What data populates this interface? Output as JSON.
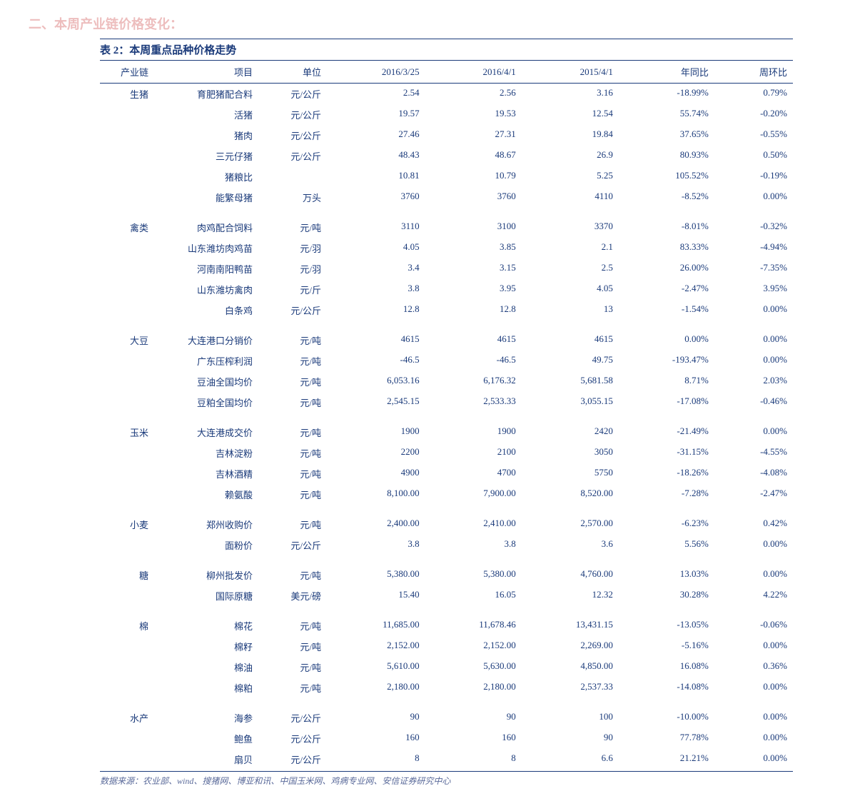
{
  "page_header": "二、本周产业链价格变化：",
  "table_title": "表 2：本周重点品种价格走势",
  "columns": [
    "产业链",
    "项目",
    "单位",
    "2016/3/25",
    "2016/4/1",
    "2015/4/1",
    "年同比",
    "周环比"
  ],
  "groups": [
    {
      "chain": "生猪",
      "rows": [
        {
          "item": "育肥猪配合料",
          "unit": "元/公斤",
          "c1": "2.54",
          "c2": "2.56",
          "c3": "3.16",
          "yoy": "-18.99%",
          "wow": "0.79%"
        },
        {
          "item": "活猪",
          "unit": "元/公斤",
          "c1": "19.57",
          "c2": "19.53",
          "c3": "12.54",
          "yoy": "55.74%",
          "wow": "-0.20%"
        },
        {
          "item": "猪肉",
          "unit": "元/公斤",
          "c1": "27.46",
          "c2": "27.31",
          "c3": "19.84",
          "yoy": "37.65%",
          "wow": "-0.55%"
        },
        {
          "item": "三元仔猪",
          "unit": "元/公斤",
          "c1": "48.43",
          "c2": "48.67",
          "c3": "26.9",
          "yoy": "80.93%",
          "wow": "0.50%"
        },
        {
          "item": "猪粮比",
          "unit": "",
          "c1": "10.81",
          "c2": "10.79",
          "c3": "5.25",
          "yoy": "105.52%",
          "wow": "-0.19%"
        },
        {
          "item": "能繁母猪",
          "unit": "万头",
          "c1": "3760",
          "c2": "3760",
          "c3": "4110",
          "yoy": "-8.52%",
          "wow": "0.00%"
        }
      ]
    },
    {
      "chain": "禽类",
      "rows": [
        {
          "item": "肉鸡配合饲料",
          "unit": "元/吨",
          "c1": "3110",
          "c2": "3100",
          "c3": "3370",
          "yoy": "-8.01%",
          "wow": "-0.32%"
        },
        {
          "item": "山东潍坊肉鸡苗",
          "unit": "元/羽",
          "c1": "4.05",
          "c2": "3.85",
          "c3": "2.1",
          "yoy": "83.33%",
          "wow": "-4.94%"
        },
        {
          "item": "河南南阳鸭苗",
          "unit": "元/羽",
          "c1": "3.4",
          "c2": "3.15",
          "c3": "2.5",
          "yoy": "26.00%",
          "wow": "-7.35%"
        },
        {
          "item": "山东潍坊禽肉",
          "unit": "元/斤",
          "c1": "3.8",
          "c2": "3.95",
          "c3": "4.05",
          "yoy": "-2.47%",
          "wow": "3.95%"
        },
        {
          "item": "白条鸡",
          "unit": "元/公斤",
          "c1": "12.8",
          "c2": "12.8",
          "c3": "13",
          "yoy": "-1.54%",
          "wow": "0.00%"
        }
      ]
    },
    {
      "chain": "大豆",
      "rows": [
        {
          "item": "大连港口分销价",
          "unit": "元/吨",
          "c1": "4615",
          "c2": "4615",
          "c3": "4615",
          "yoy": "0.00%",
          "wow": "0.00%"
        },
        {
          "item": "广东压榨利润",
          "unit": "元/吨",
          "c1": "-46.5",
          "c2": "-46.5",
          "c3": "49.75",
          "yoy": "-193.47%",
          "wow": "0.00%"
        },
        {
          "item": "豆油全国均价",
          "unit": "元/吨",
          "c1": "6,053.16",
          "c2": "6,176.32",
          "c3": "5,681.58",
          "yoy": "8.71%",
          "wow": "2.03%"
        },
        {
          "item": "豆粕全国均价",
          "unit": "元/吨",
          "c1": "2,545.15",
          "c2": "2,533.33",
          "c3": "3,055.15",
          "yoy": "-17.08%",
          "wow": "-0.46%"
        }
      ]
    },
    {
      "chain": "玉米",
      "rows": [
        {
          "item": "大连港成交价",
          "unit": "元/吨",
          "c1": "1900",
          "c2": "1900",
          "c3": "2420",
          "yoy": "-21.49%",
          "wow": "0.00%"
        },
        {
          "item": "吉林淀粉",
          "unit": "元/吨",
          "c1": "2200",
          "c2": "2100",
          "c3": "3050",
          "yoy": "-31.15%",
          "wow": "-4.55%"
        },
        {
          "item": "吉林酒精",
          "unit": "元/吨",
          "c1": "4900",
          "c2": "4700",
          "c3": "5750",
          "yoy": "-18.26%",
          "wow": "-4.08%"
        },
        {
          "item": "赖氨酸",
          "unit": "元/吨",
          "c1": "8,100.00",
          "c2": "7,900.00",
          "c3": "8,520.00",
          "yoy": "-7.28%",
          "wow": "-2.47%"
        }
      ]
    },
    {
      "chain": "小麦",
      "rows": [
        {
          "item": "郑州收购价",
          "unit": "元/吨",
          "c1": "2,400.00",
          "c2": "2,410.00",
          "c3": "2,570.00",
          "yoy": "-6.23%",
          "wow": "0.42%"
        },
        {
          "item": "面粉价",
          "unit": "元/公斤",
          "c1": "3.8",
          "c2": "3.8",
          "c3": "3.6",
          "yoy": "5.56%",
          "wow": "0.00%"
        }
      ]
    },
    {
      "chain": "糖",
      "rows": [
        {
          "item": "柳州批发价",
          "unit": "元/吨",
          "c1": "5,380.00",
          "c2": "5,380.00",
          "c3": "4,760.00",
          "yoy": "13.03%",
          "wow": "0.00%"
        },
        {
          "item": "国际原糖",
          "unit": "美元/磅",
          "c1": "15.40",
          "c2": "16.05",
          "c3": "12.32",
          "yoy": "30.28%",
          "wow": "4.22%"
        }
      ]
    },
    {
      "chain": "棉",
      "rows": [
        {
          "item": "棉花",
          "unit": "元/吨",
          "c1": "11,685.00",
          "c2": "11,678.46",
          "c3": "13,431.15",
          "yoy": "-13.05%",
          "wow": "-0.06%"
        },
        {
          "item": "棉籽",
          "unit": "元/吨",
          "c1": "2,152.00",
          "c2": "2,152.00",
          "c3": "2,269.00",
          "yoy": "-5.16%",
          "wow": "0.00%"
        },
        {
          "item": "棉油",
          "unit": "元/吨",
          "c1": "5,610.00",
          "c2": "5,630.00",
          "c3": "4,850.00",
          "yoy": "16.08%",
          "wow": "0.36%"
        },
        {
          "item": "棉粕",
          "unit": "元/吨",
          "c1": "2,180.00",
          "c2": "2,180.00",
          "c3": "2,537.33",
          "yoy": "-14.08%",
          "wow": "0.00%"
        }
      ]
    },
    {
      "chain": "水产",
      "rows": [
        {
          "item": "海参",
          "unit": "元/公斤",
          "c1": "90",
          "c2": "90",
          "c3": "100",
          "yoy": "-10.00%",
          "wow": "0.00%"
        },
        {
          "item": "鲍鱼",
          "unit": "元/公斤",
          "c1": "160",
          "c2": "160",
          "c3": "90",
          "yoy": "77.78%",
          "wow": "0.00%"
        },
        {
          "item": "扇贝",
          "unit": "元/公斤",
          "c1": "8",
          "c2": "8",
          "c3": "6.6",
          "yoy": "21.21%",
          "wow": "0.00%"
        }
      ]
    }
  ],
  "source": "数据来源：农业部、wind、搜猪网、博亚和讯、中国玉米网、鸡病专业网、安信证券研究中心",
  "colors": {
    "text": "#1a3a7a",
    "header_red": "#c62828",
    "border": "#1a3a7a",
    "source": "#5a6a9a",
    "background": "#ffffff"
  },
  "font": {
    "family": "SimSun",
    "title_size_pt": 15,
    "body_size_pt": 13,
    "header_size_pt": 18
  }
}
